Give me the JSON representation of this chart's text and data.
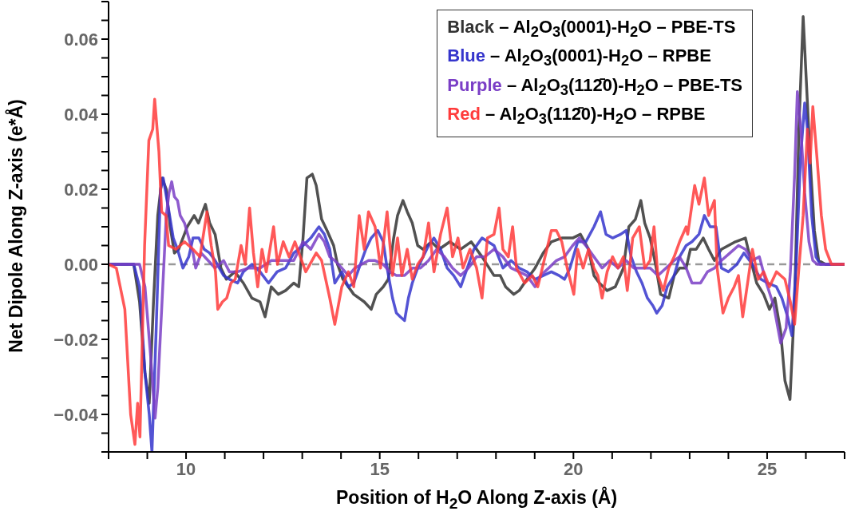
{
  "chart_data": {
    "type": "line",
    "xlabel": "Position of H$_{2}$O Along Z-axis (Å)",
    "ylabel": "Net Dipole Along Z-axis (e*Å)",
    "xlim": [
      8,
      27
    ],
    "ylim": [
      -0.05,
      0.07
    ],
    "xticks": [
      {
        "value": 8,
        "label": null
      },
      {
        "value": 9,
        "label": null
      },
      10,
      {
        "value": 11,
        "label": null
      },
      {
        "value": 12,
        "label": null
      },
      {
        "value": 13,
        "label": null
      },
      {
        "value": 14,
        "label": null
      },
      15,
      {
        "value": 16,
        "label": null
      },
      {
        "value": 17,
        "label": null
      },
      {
        "value": 18,
        "label": null
      },
      {
        "value": 19,
        "label": null
      },
      20,
      {
        "value": 21,
        "label": null
      },
      {
        "value": 22,
        "label": null
      },
      {
        "value": 23,
        "label": null
      },
      {
        "value": 24,
        "label": null
      },
      25,
      {
        "value": 26,
        "label": null
      },
      {
        "value": 27,
        "label": null
      }
    ],
    "yticks": [
      {
        "value": -0.05,
        "label": null
      },
      {
        "value": -0.045,
        "label": null
      },
      {
        "value": -0.04,
        "label": "−0.04"
      },
      {
        "value": -0.035,
        "label": null
      },
      {
        "value": -0.03,
        "label": null
      },
      {
        "value": -0.025,
        "label": null
      },
      {
        "value": -0.02,
        "label": "−0.02"
      },
      {
        "value": -0.015,
        "label": null
      },
      {
        "value": -0.01,
        "label": null
      },
      {
        "value": -0.005,
        "label": null
      },
      {
        "value": 0,
        "label": "0.00"
      },
      {
        "value": 0.005,
        "label": null
      },
      {
        "value": 0.01,
        "label": null
      },
      {
        "value": 0.015,
        "label": null
      },
      0.02,
      {
        "value": 0.025,
        "label": null
      },
      {
        "value": 0.03,
        "label": null
      },
      {
        "value": 0.035,
        "label": null
      },
      0.04,
      {
        "value": 0.045,
        "label": null
      },
      {
        "value": 0.05,
        "label": null
      },
      {
        "value": 0.055,
        "label": null
      },
      0.06,
      {
        "value": 0.065,
        "label": null
      },
      {
        "value": 0.07,
        "label": null
      }
    ],
    "legend": "top right",
    "marker": "none",
    "line_style": "solid",
    "ref_lines": [
      {
        "axis": "y",
        "value": 0,
        "color": "#999999",
        "line_style": "dashed"
      }
    ],
    "series": [
      {
        "name": "Black – Al$_{2}$O$_{3}$(0001)-H$_{2}$O – PBE-TS",
        "color": "#333333",
        "x": [
          8.0,
          8.65,
          8.8,
          8.94,
          9.05,
          9.16,
          9.27,
          9.38,
          9.49,
          9.59,
          9.7,
          9.81,
          10.03,
          10.21,
          10.32,
          10.5,
          10.61,
          10.75,
          10.9,
          11.04,
          11.26,
          11.48,
          11.7,
          11.91,
          12.04,
          12.2,
          12.38,
          12.57,
          12.78,
          12.91,
          13.02,
          13.12,
          13.26,
          13.36,
          13.5,
          13.64,
          13.81,
          13.91,
          14.05,
          14.33,
          14.6,
          14.78,
          14.91,
          15.09,
          15.22,
          15.36,
          15.46,
          15.6,
          15.71,
          15.84,
          15.98,
          16.12,
          16.33,
          16.53,
          16.81,
          17.09,
          17.36,
          17.64,
          17.95,
          18.11,
          18.25,
          18.46,
          18.6,
          18.8,
          19.01,
          19.22,
          19.43,
          19.7,
          19.98,
          20.18,
          20.39,
          20.53,
          20.67,
          20.87,
          21.08,
          21.29,
          21.43,
          21.6,
          21.74,
          21.84,
          21.98,
          22.12,
          22.25,
          22.46,
          22.6,
          22.74,
          22.91,
          23.02,
          23.17,
          23.35,
          23.49,
          23.64,
          23.82,
          24.0,
          24.18,
          24.44,
          24.58,
          24.73,
          24.91,
          25.06,
          25.2,
          25.35,
          25.46,
          25.59,
          25.71,
          25.82,
          25.93,
          26.04,
          26.11,
          26.22,
          26.33,
          26.51,
          27.0
        ],
        "values": [
          0,
          0,
          -0.01,
          -0.029,
          -0.037,
          -0.01,
          0.013,
          0.023,
          0.02,
          0.01,
          0.003,
          0.004,
          0.01,
          0.013,
          0.011,
          0.016,
          0.011,
          0.008,
          -0.001,
          -0.004,
          -0.002,
          -0.005,
          -0.009,
          -0.01,
          -0.014,
          -0.006,
          -0.008,
          -0.007,
          -0.005,
          -0.006,
          0.007,
          0.023,
          0.024,
          0.021,
          0.012,
          0.009,
          0.005,
          0.0,
          -0.004,
          -0.008,
          -0.01,
          -0.012,
          -0.008,
          -0.006,
          -0.004,
          0.007,
          0.013,
          0.017,
          0.014,
          0.011,
          0.005,
          0.004,
          0.006,
          0.004,
          0.006,
          0.004,
          0.006,
          0.002,
          -0.003,
          -0.003,
          -0.006,
          -0.008,
          -0.007,
          -0.004,
          -0.001,
          0.003,
          0.006,
          0.007,
          0.007,
          0.008,
          0.004,
          -0.003,
          -0.005,
          -0.007,
          -0.006,
          -0.001,
          0.01,
          0.012,
          0.017,
          0.011,
          0.007,
          0.0,
          -0.008,
          -0.009,
          -0.003,
          -0.001,
          -0.001,
          0.004,
          0.004,
          0.007,
          0.004,
          0.001,
          0.004,
          0.005,
          0.006,
          0.007,
          0.001,
          -0.005,
          -0.008,
          -0.012,
          -0.009,
          -0.018,
          -0.031,
          -0.036,
          -0.01,
          0.036,
          0.066,
          0.043,
          0.028,
          0.009,
          0.001,
          0,
          0
        ]
      },
      {
        "name": "Blue – Al$_{2}$O$_{3}$(0001)-H$_{2}$O – RPBE",
        "color": "#3535cc",
        "x": [
          8.0,
          8.65,
          8.8,
          8.94,
          9.05,
          9.12,
          9.23,
          9.34,
          9.41,
          9.56,
          9.67,
          9.78,
          9.92,
          10.07,
          10.18,
          10.33,
          10.47,
          10.61,
          10.75,
          10.97,
          11.12,
          11.33,
          11.48,
          11.7,
          11.91,
          12.13,
          12.35,
          12.57,
          12.78,
          13.02,
          13.22,
          13.43,
          13.57,
          13.71,
          13.84,
          14.02,
          14.19,
          14.33,
          14.5,
          14.64,
          14.78,
          14.95,
          15.09,
          15.19,
          15.33,
          15.43,
          15.53,
          15.64,
          15.74,
          15.84,
          15.98,
          16.12,
          16.26,
          16.4,
          16.57,
          16.74,
          16.91,
          17.09,
          17.26,
          17.43,
          17.64,
          17.95,
          18.18,
          18.39,
          18.6,
          18.8,
          19.01,
          19.22,
          19.43,
          19.63,
          19.77,
          19.91,
          20.11,
          20.32,
          20.53,
          20.7,
          20.84,
          21.01,
          21.22,
          21.36,
          21.49,
          21.63,
          21.77,
          21.91,
          22.05,
          22.15,
          22.29,
          22.42,
          22.6,
          22.74,
          22.91,
          23.06,
          23.24,
          23.38,
          23.53,
          23.68,
          23.82,
          24.0,
          24.22,
          24.4,
          24.62,
          24.84,
          25.02,
          25.24,
          25.38,
          25.53,
          25.64,
          25.75,
          25.86,
          25.97,
          26.04,
          26.15,
          26.26,
          26.37,
          27.0
        ],
        "values": [
          0,
          0,
          -0.006,
          -0.029,
          -0.04,
          -0.05,
          -0.017,
          0.02,
          0.023,
          0.014,
          0.007,
          0.004,
          -0.001,
          0.002,
          0.007,
          0.007,
          0.004,
          0.003,
          0.001,
          -0.003,
          -0.004,
          -0.005,
          -0.002,
          0.0,
          -0.002,
          -0.005,
          -0.002,
          -0.001,
          0.003,
          0.005,
          0.007,
          0.01,
          0.008,
          0.004,
          -0.005,
          -0.002,
          -0.006,
          -0.005,
          0.0,
          0.004,
          0.007,
          0.009,
          0.006,
          -0.001,
          -0.009,
          -0.013,
          -0.014,
          -0.015,
          -0.009,
          -0.005,
          -0.001,
          0.002,
          0.005,
          0.007,
          0.004,
          -0.001,
          -0.003,
          -0.006,
          -0.001,
          0.004,
          0.007,
          0.005,
          -0.001,
          0.001,
          -0.001,
          -0.002,
          -0.004,
          -0.003,
          -0.002,
          -0.003,
          -0.004,
          -0.001,
          0.006,
          0.006,
          0.01,
          0.014,
          0.008,
          0.007,
          0.008,
          0.009,
          0.002,
          -0.002,
          -0.005,
          -0.009,
          -0.011,
          -0.013,
          -0.011,
          -0.006,
          -0.003,
          0.002,
          0.005,
          0.006,
          0.008,
          0.013,
          0.01,
          0.01,
          -0.001,
          -0.002,
          0.0,
          0.003,
          0.0,
          -0.004,
          -0.005,
          -0.006,
          -0.009,
          -0.014,
          -0.019,
          0.0,
          0.028,
          0.043,
          0.036,
          0.013,
          0.002,
          0,
          0
        ]
      },
      {
        "name": "Purple – Al$_{2}$O$_{3}$(112̄0)-H$_{2}$O – PBE-TS",
        "color": "#7a3ec6",
        "x": [
          8.0,
          8.8,
          8.94,
          9.09,
          9.2,
          9.27,
          9.38,
          9.49,
          9.56,
          9.63,
          9.7,
          9.78,
          9.85,
          9.96,
          10.07,
          10.18,
          10.25,
          10.39,
          10.57,
          10.75,
          10.97,
          11.12,
          11.33,
          11.62,
          11.91,
          12.2,
          12.49,
          12.78,
          13.02,
          13.22,
          13.43,
          13.57,
          13.71,
          13.84,
          14.02,
          14.19,
          14.36,
          14.53,
          14.71,
          14.88,
          15.09,
          15.26,
          15.43,
          15.64,
          15.84,
          16.05,
          16.26,
          16.47,
          16.67,
          16.88,
          17.09,
          17.29,
          17.5,
          17.71,
          17.95,
          18.18,
          18.39,
          18.6,
          18.8,
          19.01,
          19.15,
          19.36,
          19.56,
          19.77,
          19.98,
          20.15,
          20.32,
          20.53,
          20.74,
          20.94,
          21.15,
          21.36,
          21.56,
          21.77,
          21.98,
          22.18,
          22.39,
          22.6,
          22.74,
          22.91,
          23.06,
          23.28,
          23.46,
          23.64,
          23.82,
          24.04,
          24.26,
          24.44,
          24.62,
          24.8,
          24.98,
          25.17,
          25.35,
          25.49,
          25.6,
          25.71,
          25.78,
          25.87,
          25.97,
          26.08,
          26.18,
          26.29,
          27.0
        ],
        "values": [
          0,
          0,
          -0.006,
          -0.025,
          -0.041,
          -0.033,
          -0.01,
          0.013,
          0.019,
          0.022,
          0.018,
          0.017,
          0.013,
          0.011,
          0.007,
          0.003,
          -0.001,
          0.003,
          0.001,
          -0.001,
          0.001,
          -0.002,
          -0.002,
          -0.001,
          -0.001,
          0.001,
          0.001,
          0.001,
          0.006,
          0.004,
          0.008,
          0.006,
          0.002,
          0.001,
          -0.001,
          -0.003,
          -0.001,
          0.0,
          0.001,
          0.001,
          0.0,
          -0.002,
          -0.003,
          -0.003,
          -0.001,
          -0.001,
          0.001,
          0.004,
          0.002,
          -0.001,
          -0.003,
          -0.001,
          0.002,
          0.002,
          0.004,
          0.002,
          -0.001,
          -0.002,
          -0.003,
          -0.006,
          -0.003,
          -0.001,
          0.001,
          0.002,
          0.005,
          0.007,
          0.005,
          0.002,
          -0.001,
          0.001,
          -0.001,
          0.001,
          -0.001,
          -0.001,
          -0.001,
          -0.003,
          -0.001,
          0.001,
          0.002,
          -0.001,
          -0.005,
          -0.005,
          -0.002,
          -0.001,
          0.001,
          0.003,
          0.005,
          0.004,
          0.001,
          0.002,
          -0.005,
          -0.011,
          -0.021,
          -0.017,
          -0.002,
          0.024,
          0.046,
          0.036,
          0.019,
          0.006,
          0.001,
          0,
          0
        ]
      },
      {
        "name": "Red – Al$_{2}$O$_{3}$(112̄0)-H$_{2}$O – RPBE",
        "color": "#ff3b3b",
        "x": [
          8.0,
          8.2,
          8.42,
          8.57,
          8.68,
          8.75,
          8.81,
          8.93,
          9.04,
          9.14,
          9.19,
          9.3,
          9.37,
          9.48,
          9.55,
          9.74,
          9.96,
          10.18,
          10.36,
          10.54,
          10.65,
          10.76,
          10.82,
          10.94,
          11.05,
          11.16,
          11.27,
          11.42,
          11.53,
          11.64,
          11.74,
          11.85,
          11.96,
          12.07,
          12.26,
          12.36,
          12.51,
          12.66,
          12.81,
          13.09,
          13.36,
          13.5,
          13.71,
          13.84,
          14.02,
          14.19,
          14.33,
          14.47,
          14.6,
          14.71,
          14.88,
          15.02,
          15.19,
          15.33,
          15.46,
          15.57,
          15.71,
          15.84,
          15.98,
          16.12,
          16.26,
          16.4,
          16.57,
          16.74,
          16.88,
          17.02,
          17.15,
          17.33,
          17.5,
          17.64,
          17.78,
          17.95,
          18.08,
          18.18,
          18.32,
          18.43,
          18.53,
          18.74,
          18.94,
          19.08,
          19.22,
          19.43,
          19.56,
          19.7,
          19.84,
          20.01,
          20.11,
          20.25,
          20.39,
          20.53,
          20.63,
          20.74,
          20.87,
          21.01,
          21.15,
          21.29,
          21.39,
          21.53,
          21.7,
          21.84,
          21.98,
          22.08,
          22.18,
          22.32,
          22.46,
          22.6,
          22.74,
          22.91,
          22.95,
          23.13,
          23.24,
          23.38,
          23.49,
          23.64,
          23.71,
          23.86,
          24.0,
          24.15,
          24.26,
          24.37,
          24.51,
          24.62,
          24.77,
          24.91,
          25.06,
          25.24,
          25.46,
          25.6,
          25.71,
          25.82,
          25.93,
          26.04,
          26.11,
          26.18,
          26.29,
          26.4,
          26.51,
          26.66,
          27.0
        ],
        "values": [
          0,
          -0.001,
          -0.012,
          -0.04,
          -0.048,
          -0.037,
          -0.046,
          0.005,
          0.033,
          0.036,
          0.044,
          0.03,
          0.014,
          0.013,
          0.005,
          0.004,
          0.006,
          0.004,
          0.002,
          0.014,
          0.005,
          -0.002,
          -0.012,
          -0.01,
          -0.009,
          -0.005,
          -0.004,
          0.005,
          0.0,
          0.015,
          0.003,
          -0.006,
          0.004,
          -0.002,
          0.01,
          0.0,
          0.006,
          0.002,
          0.006,
          -0.002,
          0.003,
          0.001,
          -0.009,
          -0.016,
          -0.006,
          -0.002,
          -0.006,
          0.013,
          0.004,
          0.014,
          0.01,
          -0.001,
          0.014,
          -0.003,
          0.007,
          -0.003,
          0.004,
          -0.004,
          0.0,
          0.002,
          0.011,
          -0.002,
          0.008,
          0.015,
          0.002,
          0.007,
          -0.001,
          0.004,
          -0.001,
          -0.009,
          0.007,
          0.008,
          0.015,
          0.004,
          0.002,
          0.01,
          -0.001,
          -0.005,
          -0.003,
          -0.006,
          0.0,
          0.009,
          0.009,
          0.006,
          -0.001,
          -0.008,
          0.004,
          -0.001,
          0.004,
          -0.001,
          -0.003,
          -0.009,
          -0.002,
          0.002,
          -0.001,
          0.002,
          -0.007,
          0.007,
          0.01,
          -0.001,
          0.001,
          0.01,
          -0.003,
          -0.007,
          -0.001,
          0.002,
          0.006,
          0.01,
          0.008,
          0.021,
          0.016,
          0.023,
          0.013,
          0.017,
          -0.001,
          -0.013,
          -0.009,
          -0.006,
          -0.003,
          -0.014,
          -0.004,
          0.004,
          -0.004,
          -0.002,
          -0.006,
          -0.002,
          -0.004,
          -0.01,
          -0.016,
          -0.001,
          0.013,
          0.036,
          0.027,
          0.042,
          0.028,
          0.013,
          0.004,
          0,
          0
        ]
      }
    ]
  }
}
